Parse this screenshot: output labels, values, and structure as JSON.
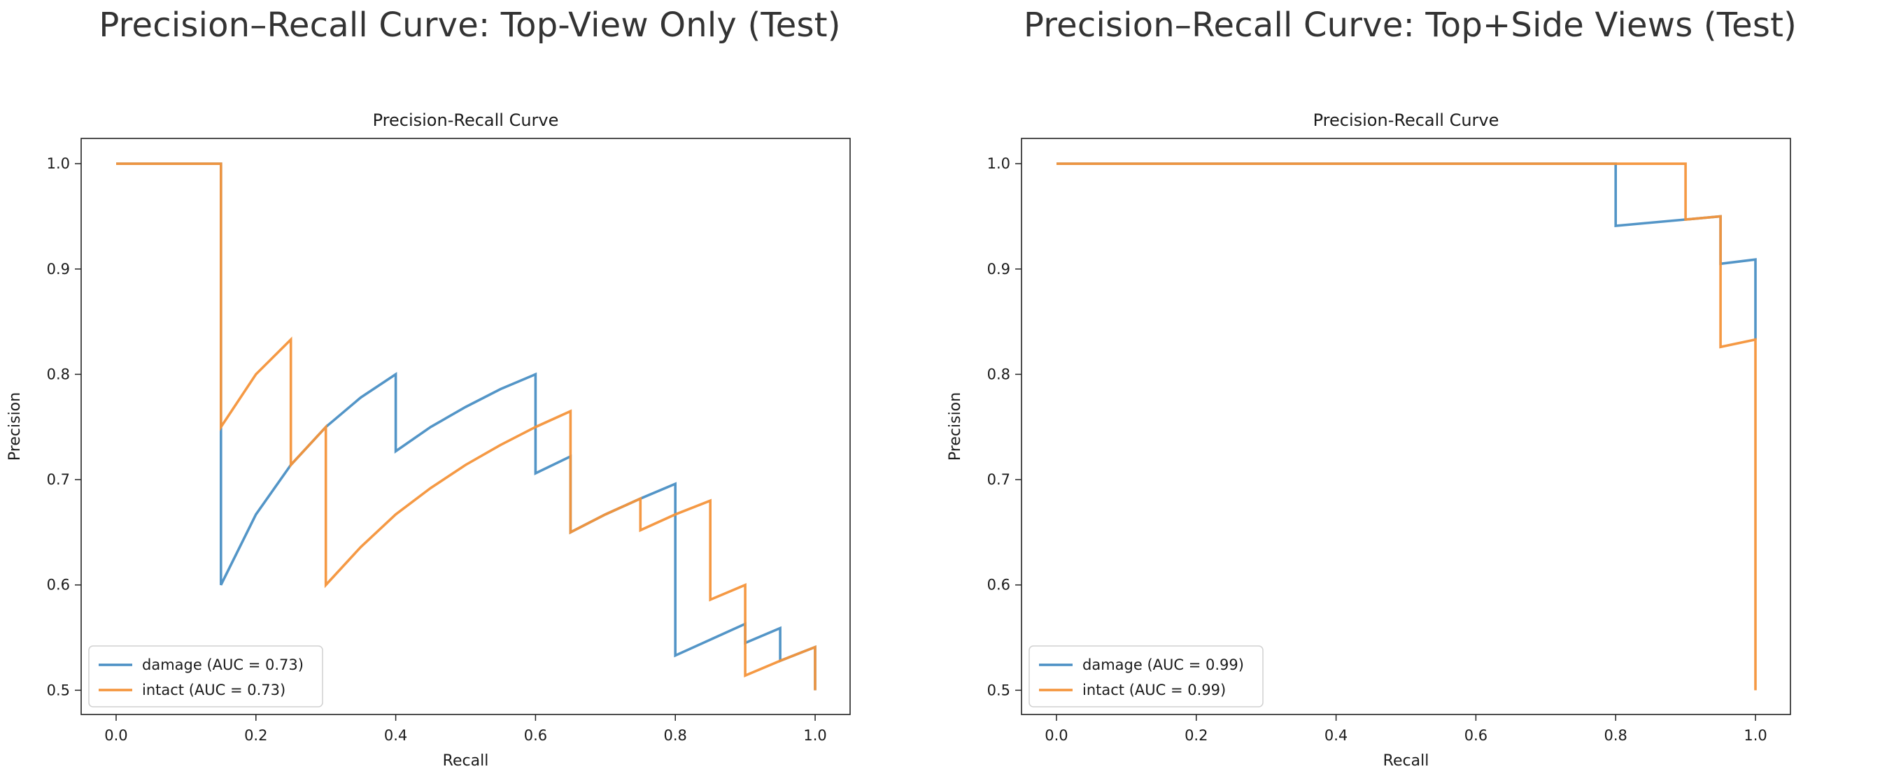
{
  "colors": {
    "damage": "#4a8fc4",
    "intact": "#f4943a"
  },
  "chart_data": [
    {
      "type": "line",
      "suptitle": "Precision–Recall Curve: Top-View Only (Test)",
      "title": "Precision-Recall Curve",
      "xlabel": "Recall",
      "ylabel": "Precision",
      "xlim": [
        -0.05,
        1.05
      ],
      "ylim": [
        0.477,
        1.024
      ],
      "xticks": [
        0.0,
        0.2,
        0.4,
        0.6,
        0.8,
        1.0
      ],
      "xtick_labels": [
        "0.0",
        "0.2",
        "0.4",
        "0.6",
        "0.8",
        "1.0"
      ],
      "yticks": [
        0.5,
        0.6,
        0.7,
        0.8,
        0.9,
        1.0
      ],
      "ytick_labels": [
        "0.5",
        "0.6",
        "0.7",
        "0.8",
        "0.9",
        "1.0"
      ],
      "grid": false,
      "legend_position": "lower-left",
      "series": [
        {
          "name": "damage (AUC = 0.73)",
          "color": "#4a8fc4",
          "x": [
            0.0,
            0.15,
            0.15,
            0.15,
            0.2,
            0.25,
            0.3,
            0.35,
            0.4,
            0.4,
            0.45,
            0.5,
            0.55,
            0.6,
            0.6,
            0.65,
            0.65,
            0.7,
            0.75,
            0.8,
            0.8,
            0.85,
            0.9,
            0.9,
            0.95,
            0.95,
            1.0,
            1.0
          ],
          "y": [
            1.0,
            1.0,
            0.75,
            0.6,
            0.667,
            0.714,
            0.75,
            0.778,
            0.8,
            0.727,
            0.75,
            0.769,
            0.786,
            0.8,
            0.706,
            0.722,
            0.65,
            0.667,
            0.682,
            0.696,
            0.533,
            0.548,
            0.563,
            0.545,
            0.559,
            0.528,
            0.541,
            0.5
          ]
        },
        {
          "name": "intact (AUC = 0.73)",
          "color": "#f4943a",
          "x": [
            0.0,
            0.15,
            0.15,
            0.2,
            0.25,
            0.25,
            0.3,
            0.3,
            0.35,
            0.4,
            0.45,
            0.5,
            0.55,
            0.6,
            0.65,
            0.65,
            0.7,
            0.75,
            0.75,
            0.8,
            0.85,
            0.85,
            0.9,
            0.9,
            0.95,
            1.0,
            1.0
          ],
          "y": [
            1.0,
            1.0,
            0.75,
            0.8,
            0.833,
            0.714,
            0.75,
            0.6,
            0.636,
            0.667,
            0.692,
            0.714,
            0.733,
            0.75,
            0.765,
            0.65,
            0.667,
            0.682,
            0.652,
            0.667,
            0.68,
            0.586,
            0.6,
            0.514,
            0.528,
            0.541,
            0.5
          ]
        }
      ]
    },
    {
      "type": "line",
      "suptitle": "Precision–Recall Curve: Top+Side Views (Test)",
      "title": "Precision-Recall Curve",
      "xlabel": "Recall",
      "ylabel": "Precision",
      "xlim": [
        -0.05,
        1.05
      ],
      "ylim": [
        0.477,
        1.024
      ],
      "xticks": [
        0.0,
        0.2,
        0.4,
        0.6,
        0.8,
        1.0
      ],
      "xtick_labels": [
        "0.0",
        "0.2",
        "0.4",
        "0.6",
        "0.8",
        "1.0"
      ],
      "yticks": [
        0.5,
        0.6,
        0.7,
        0.8,
        0.9,
        1.0
      ],
      "ytick_labels": [
        "0.5",
        "0.6",
        "0.7",
        "0.8",
        "0.9",
        "1.0"
      ],
      "grid": false,
      "legend_position": "lower-left",
      "series": [
        {
          "name": "damage (AUC = 0.99)",
          "color": "#4a8fc4",
          "x": [
            0.0,
            0.8,
            0.8,
            0.85,
            0.9,
            0.95,
            0.95,
            1.0,
            1.0
          ],
          "y": [
            1.0,
            1.0,
            0.941,
            0.944,
            0.947,
            0.95,
            0.905,
            0.909,
            0.833
          ]
        },
        {
          "name": "intact (AUC = 0.99)",
          "color": "#f4943a",
          "x": [
            0.0,
            0.9,
            0.9,
            0.95,
            0.95,
            1.0,
            1.0
          ],
          "y": [
            1.0,
            1.0,
            0.947,
            0.95,
            0.826,
            0.833,
            0.5
          ]
        }
      ]
    }
  ]
}
